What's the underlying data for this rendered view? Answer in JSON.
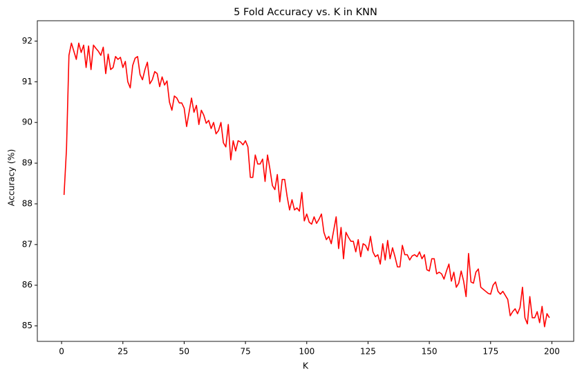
{
  "chart_data": {
    "type": "line",
    "title": "5 Fold Accuracy vs. K in KNN",
    "x_label": "K",
    "y_label": "Accuracy (%)",
    "color": "#ff0000",
    "x": [
      1,
      2,
      3,
      4,
      5,
      6,
      7,
      8,
      9,
      10,
      11,
      12,
      13,
      14,
      15,
      16,
      17,
      18,
      19,
      20,
      21,
      22,
      23,
      24,
      25,
      26,
      27,
      28,
      29,
      30,
      31,
      32,
      33,
      34,
      35,
      36,
      37,
      38,
      39,
      40,
      41,
      42,
      43,
      44,
      45,
      46,
      47,
      48,
      49,
      50,
      51,
      52,
      53,
      54,
      55,
      56,
      57,
      58,
      59,
      60,
      61,
      62,
      63,
      64,
      65,
      66,
      67,
      68,
      69,
      70,
      71,
      72,
      73,
      74,
      75,
      76,
      77,
      78,
      79,
      80,
      81,
      82,
      83,
      84,
      85,
      86,
      87,
      88,
      89,
      90,
      91,
      92,
      93,
      94,
      95,
      96,
      97,
      98,
      99,
      100,
      101,
      102,
      103,
      104,
      105,
      106,
      107,
      108,
      109,
      110,
      111,
      112,
      113,
      114,
      115,
      116,
      117,
      118,
      119,
      120,
      121,
      122,
      123,
      124,
      125,
      126,
      127,
      128,
      129,
      130,
      131,
      132,
      133,
      134,
      135,
      136,
      137,
      138,
      139,
      140,
      141,
      142,
      143,
      144,
      145,
      146,
      147,
      148,
      149,
      150,
      151,
      152,
      153,
      154,
      155,
      156,
      157,
      158,
      159,
      160,
      161,
      162,
      163,
      164,
      165,
      166,
      167,
      168,
      169,
      170,
      171,
      172,
      173,
      174,
      175,
      176,
      177,
      178,
      179,
      180,
      181,
      182,
      183,
      184,
      185,
      186,
      187,
      188,
      189,
      190,
      191,
      192,
      193,
      194,
      195,
      196,
      197,
      198,
      199
    ],
    "values": [
      88.22,
      89.35,
      91.65,
      91.95,
      91.75,
      91.55,
      91.95,
      91.72,
      91.9,
      91.35,
      91.88,
      91.3,
      91.9,
      91.82,
      91.75,
      91.65,
      91.85,
      91.2,
      91.68,
      91.3,
      91.35,
      91.62,
      91.55,
      91.6,
      91.35,
      91.5,
      91.0,
      90.85,
      91.4,
      91.58,
      91.62,
      91.18,
      91.05,
      91.3,
      91.48,
      90.95,
      91.05,
      91.25,
      91.2,
      90.88,
      91.12,
      90.92,
      91.02,
      90.5,
      90.3,
      90.65,
      90.6,
      90.48,
      90.48,
      90.35,
      89.9,
      90.25,
      90.6,
      90.25,
      90.42,
      89.95,
      90.3,
      90.18,
      89.98,
      90.05,
      89.85,
      90.0,
      89.72,
      89.8,
      90.0,
      89.5,
      89.4,
      89.95,
      89.08,
      89.55,
      89.3,
      89.55,
      89.52,
      89.45,
      89.55,
      89.4,
      88.65,
      88.65,
      89.2,
      88.98,
      88.98,
      89.1,
      88.55,
      89.2,
      88.85,
      88.45,
      88.35,
      88.72,
      88.05,
      88.6,
      88.6,
      88.18,
      87.85,
      88.1,
      87.85,
      87.9,
      87.82,
      88.28,
      87.58,
      87.75,
      87.55,
      87.5,
      87.68,
      87.52,
      87.62,
      87.75,
      87.3,
      87.12,
      87.2,
      87.02,
      87.35,
      87.68,
      86.9,
      87.42,
      86.65,
      87.3,
      87.18,
      87.08,
      87.08,
      86.82,
      87.12,
      86.7,
      87.02,
      86.98,
      86.85,
      87.2,
      86.82,
      86.7,
      86.75,
      86.52,
      87.02,
      86.62,
      87.1,
      86.65,
      86.92,
      86.7,
      86.45,
      86.45,
      86.98,
      86.75,
      86.75,
      86.62,
      86.72,
      86.75,
      86.7,
      86.82,
      86.65,
      86.75,
      86.38,
      86.35,
      86.65,
      86.65,
      86.28,
      86.32,
      86.28,
      86.15,
      86.35,
      86.52,
      86.1,
      86.32,
      85.95,
      86.05,
      86.35,
      86.1,
      85.72,
      86.78,
      86.08,
      86.05,
      86.32,
      86.4,
      85.95,
      85.9,
      85.85,
      85.8,
      85.78,
      86.0,
      86.08,
      85.85,
      85.78,
      85.85,
      85.75,
      85.65,
      85.25,
      85.35,
      85.42,
      85.3,
      85.45,
      85.95,
      85.2,
      85.05,
      85.72,
      85.2,
      85.2,
      85.35,
      85.08,
      85.48,
      84.98,
      85.3,
      85.2
    ],
    "xlim": [
      -9.9,
      208.9
    ],
    "xticks": [
      0,
      25,
      50,
      75,
      100,
      125,
      150,
      175,
      200
    ],
    "ylim": [
      84.62,
      92.5
    ],
    "yticks": [
      85,
      86,
      87,
      88,
      89,
      90,
      91,
      92
    ]
  }
}
